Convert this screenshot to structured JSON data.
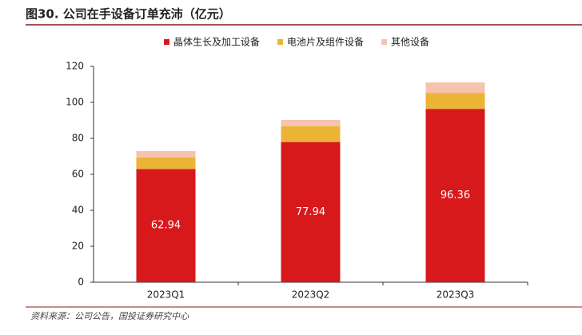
{
  "header": {
    "title": "图30. 公司在手设备订单充沛（亿元）"
  },
  "chart_data": {
    "type": "stacked_bar",
    "categories": [
      "2023Q1",
      "2023Q2",
      "2023Q3"
    ],
    "series": [
      {
        "name": "晶体生长及加工设备",
        "color": "#d7191c",
        "values": [
          62.94,
          77.94,
          96.36
        ],
        "data_labels": true
      },
      {
        "name": "电池片及组件设备",
        "color": "#ebb437",
        "values": [
          6.4,
          8.8,
          8.9
        ]
      },
      {
        "name": "其他设备",
        "color": "#f6c3ae",
        "values": [
          3.6,
          3.5,
          5.8
        ]
      }
    ],
    "ylim": [
      0,
      120
    ],
    "yticks": [
      0,
      20,
      40,
      60,
      80,
      100,
      120
    ],
    "legend": "top"
  },
  "footer": {
    "source": "资料来源：公司公告，国投证券研究中心"
  }
}
